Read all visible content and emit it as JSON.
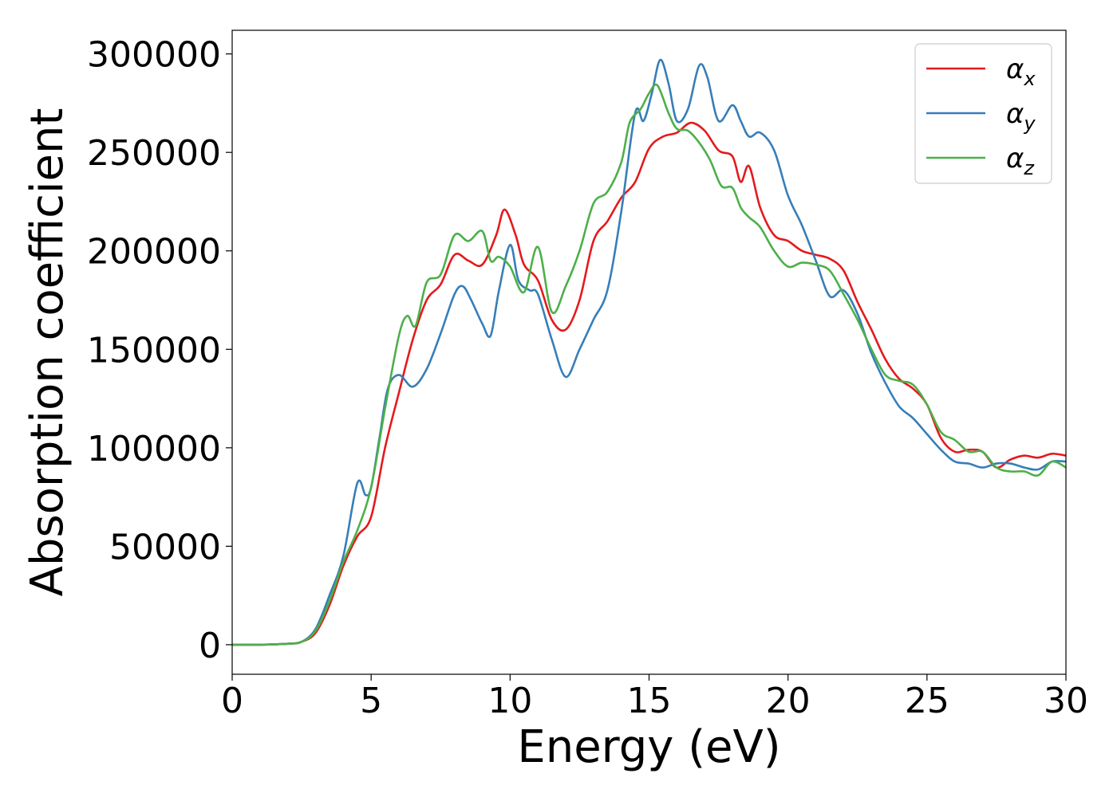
{
  "chart_data": {
    "type": "line",
    "title": "",
    "xlabel": "Energy (eV)",
    "ylabel": "Absorption coefficient",
    "xlim": [
      0,
      30
    ],
    "ylim": [
      -15000,
      312000
    ],
    "xticks": [
      0,
      5,
      10,
      15,
      20,
      25,
      30
    ],
    "yticks": [
      0,
      50000,
      100000,
      150000,
      200000,
      250000,
      300000
    ],
    "grid": false,
    "legend_position": "top-right",
    "series": [
      {
        "name": "αx",
        "symbol": "α",
        "subscript": "x",
        "color": "#e41a1c",
        "points": [
          [
            0,
            0
          ],
          [
            1,
            0
          ],
          [
            2,
            500
          ],
          [
            2.5,
            1500
          ],
          [
            3,
            6000
          ],
          [
            3.5,
            20000
          ],
          [
            4,
            40000
          ],
          [
            4.5,
            55000
          ],
          [
            5,
            65000
          ],
          [
            5.5,
            100000
          ],
          [
            6,
            128000
          ],
          [
            6.5,
            155000
          ],
          [
            7,
            175000
          ],
          [
            7.5,
            183000
          ],
          [
            8,
            198000
          ],
          [
            8.5,
            195000
          ],
          [
            9,
            193000
          ],
          [
            9.5,
            208000
          ],
          [
            9.8,
            221000
          ],
          [
            10.2,
            208000
          ],
          [
            10.5,
            193000
          ],
          [
            11,
            185000
          ],
          [
            11.5,
            165000
          ],
          [
            12,
            160000
          ],
          [
            12.5,
            175000
          ],
          [
            13,
            205000
          ],
          [
            13.5,
            215000
          ],
          [
            14,
            227000
          ],
          [
            14.5,
            235000
          ],
          [
            15,
            252000
          ],
          [
            15.5,
            258000
          ],
          [
            16,
            260000
          ],
          [
            16.5,
            265000
          ],
          [
            17,
            261000
          ],
          [
            17.5,
            251000
          ],
          [
            18,
            248000
          ],
          [
            18.3,
            235000
          ],
          [
            18.6,
            243000
          ],
          [
            19,
            222000
          ],
          [
            19.5,
            208000
          ],
          [
            20,
            205000
          ],
          [
            20.5,
            200000
          ],
          [
            21,
            198000
          ],
          [
            21.5,
            196000
          ],
          [
            22,
            190000
          ],
          [
            22.5,
            174000
          ],
          [
            23,
            160000
          ],
          [
            23.5,
            145000
          ],
          [
            24,
            135000
          ],
          [
            24.5,
            130000
          ],
          [
            25,
            122000
          ],
          [
            25.5,
            105000
          ],
          [
            26,
            98000
          ],
          [
            26.5,
            99000
          ],
          [
            27,
            98000
          ],
          [
            27.5,
            90000
          ],
          [
            28,
            94000
          ],
          [
            28.5,
            96000
          ],
          [
            29,
            95000
          ],
          [
            29.5,
            97000
          ],
          [
            30,
            96000
          ]
        ]
      },
      {
        "name": "αy",
        "symbol": "α",
        "subscript": "y",
        "color": "#377eb8",
        "points": [
          [
            0,
            0
          ],
          [
            1,
            0
          ],
          [
            2,
            500
          ],
          [
            2.5,
            1500
          ],
          [
            3,
            8000
          ],
          [
            3.5,
            25000
          ],
          [
            4,
            45000
          ],
          [
            4.5,
            82000
          ],
          [
            4.8,
            76000
          ],
          [
            5,
            80000
          ],
          [
            5.3,
            105000
          ],
          [
            5.6,
            130000
          ],
          [
            6,
            137000
          ],
          [
            6.5,
            131000
          ],
          [
            7,
            140000
          ],
          [
            7.5,
            158000
          ],
          [
            8,
            178000
          ],
          [
            8.3,
            182000
          ],
          [
            8.6,
            175000
          ],
          [
            9,
            163000
          ],
          [
            9.3,
            157000
          ],
          [
            9.6,
            180000
          ],
          [
            10,
            203000
          ],
          [
            10.3,
            185000
          ],
          [
            10.7,
            180000
          ],
          [
            11,
            178000
          ],
          [
            11.5,
            155000
          ],
          [
            12,
            136000
          ],
          [
            12.5,
            150000
          ],
          [
            13,
            165000
          ],
          [
            13.5,
            180000
          ],
          [
            14,
            220000
          ],
          [
            14.5,
            270000
          ],
          [
            14.8,
            266000
          ],
          [
            15.1,
            280000
          ],
          [
            15.4,
            297000
          ],
          [
            15.7,
            285000
          ],
          [
            16,
            266000
          ],
          [
            16.4,
            272000
          ],
          [
            16.8,
            294000
          ],
          [
            17.1,
            288000
          ],
          [
            17.5,
            266000
          ],
          [
            18,
            274000
          ],
          [
            18.3,
            266000
          ],
          [
            18.6,
            258000
          ],
          [
            19,
            260000
          ],
          [
            19.5,
            251000
          ],
          [
            20,
            228000
          ],
          [
            20.5,
            213000
          ],
          [
            21,
            195000
          ],
          [
            21.5,
            177000
          ],
          [
            22,
            180000
          ],
          [
            22.5,
            168000
          ],
          [
            23,
            148000
          ],
          [
            23.5,
            133000
          ],
          [
            24,
            121000
          ],
          [
            24.5,
            115000
          ],
          [
            25,
            107000
          ],
          [
            25.5,
            99000
          ],
          [
            26,
            93000
          ],
          [
            26.5,
            92000
          ],
          [
            27,
            90000
          ],
          [
            27.5,
            92000
          ],
          [
            28,
            92000
          ],
          [
            28.5,
            90000
          ],
          [
            29,
            89000
          ],
          [
            29.5,
            93000
          ],
          [
            30,
            93000
          ]
        ]
      },
      {
        "name": "αz",
        "symbol": "α",
        "subscript": "z",
        "color": "#4daf4a",
        "points": [
          [
            0,
            0
          ],
          [
            1,
            0
          ],
          [
            2,
            500
          ],
          [
            2.5,
            1500
          ],
          [
            3,
            7000
          ],
          [
            3.5,
            22000
          ],
          [
            4,
            42000
          ],
          [
            4.5,
            58000
          ],
          [
            5,
            80000
          ],
          [
            5.5,
            120000
          ],
          [
            6,
            157000
          ],
          [
            6.3,
            167000
          ],
          [
            6.6,
            162000
          ],
          [
            7,
            184000
          ],
          [
            7.5,
            188000
          ],
          [
            8,
            208000
          ],
          [
            8.5,
            205000
          ],
          [
            9,
            210000
          ],
          [
            9.3,
            195000
          ],
          [
            9.6,
            197000
          ],
          [
            10,
            192000
          ],
          [
            10.5,
            179000
          ],
          [
            11,
            202000
          ],
          [
            11.5,
            169000
          ],
          [
            12,
            182000
          ],
          [
            12.5,
            200000
          ],
          [
            13,
            224000
          ],
          [
            13.5,
            230000
          ],
          [
            14,
            245000
          ],
          [
            14.3,
            265000
          ],
          [
            14.7,
            272000
          ],
          [
            15,
            280000
          ],
          [
            15.3,
            284000
          ],
          [
            15.7,
            270000
          ],
          [
            16,
            262000
          ],
          [
            16.4,
            261000
          ],
          [
            16.8,
            255000
          ],
          [
            17.2,
            246000
          ],
          [
            17.6,
            233000
          ],
          [
            18,
            232000
          ],
          [
            18.3,
            222000
          ],
          [
            18.6,
            217000
          ],
          [
            19,
            212000
          ],
          [
            19.5,
            200000
          ],
          [
            20,
            192000
          ],
          [
            20.5,
            194000
          ],
          [
            21,
            193000
          ],
          [
            21.5,
            190000
          ],
          [
            22,
            178000
          ],
          [
            22.5,
            165000
          ],
          [
            23,
            150000
          ],
          [
            23.5,
            137000
          ],
          [
            24,
            134000
          ],
          [
            24.5,
            132000
          ],
          [
            25,
            122000
          ],
          [
            25.5,
            108000
          ],
          [
            26,
            104000
          ],
          [
            26.5,
            98000
          ],
          [
            27,
            98000
          ],
          [
            27.5,
            90000
          ],
          [
            28,
            88000
          ],
          [
            28.5,
            88000
          ],
          [
            29,
            86000
          ],
          [
            29.5,
            93000
          ],
          [
            30,
            90000
          ]
        ]
      }
    ]
  }
}
